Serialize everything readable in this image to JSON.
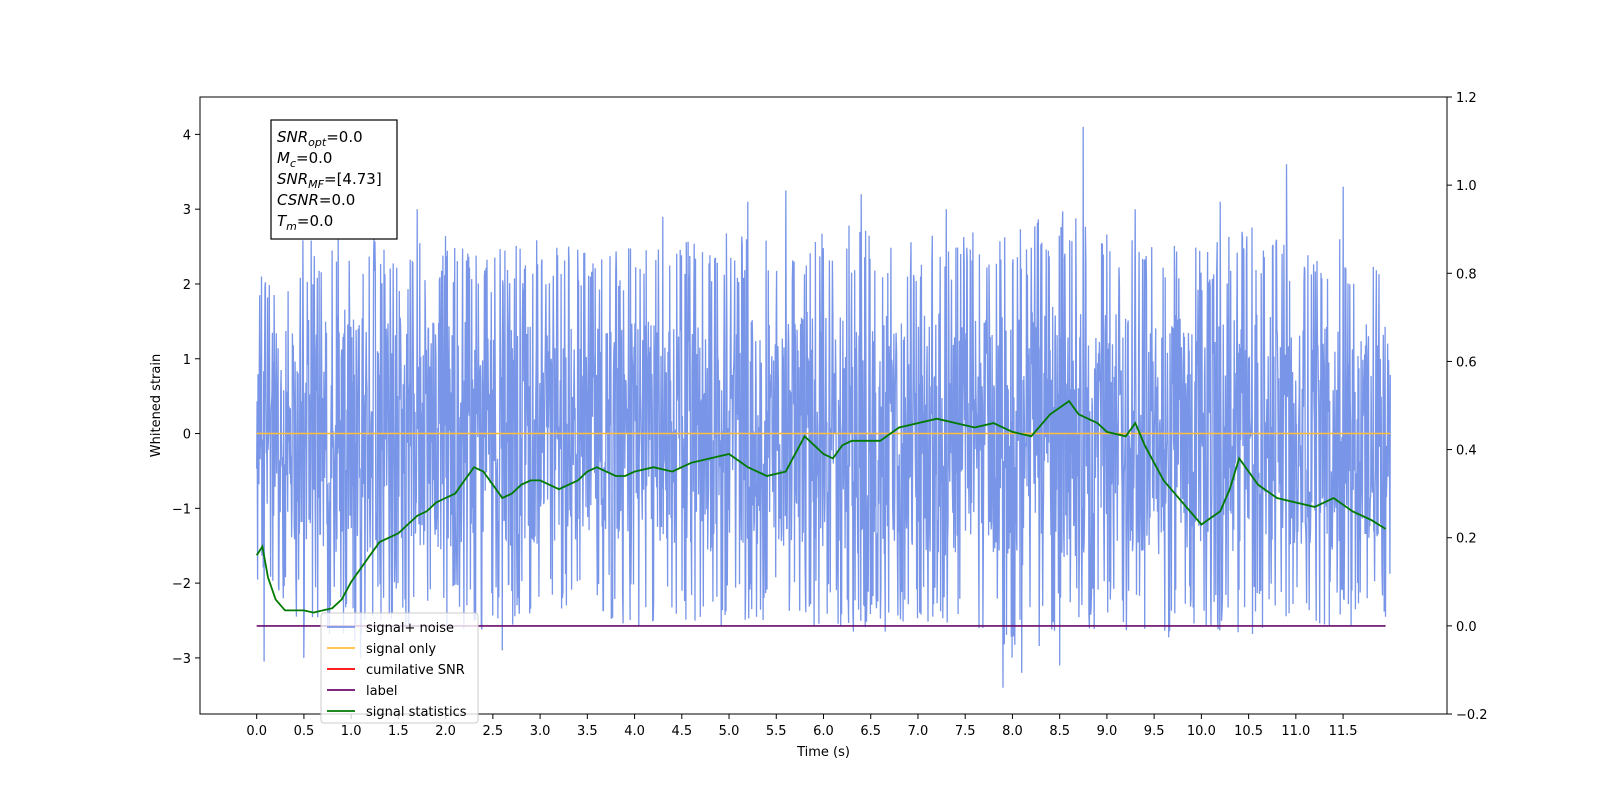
{
  "chart_data": {
    "type": "line",
    "title": "",
    "xlabel": "Time (s)",
    "ylabel": "Whitened strain",
    "xlim": [
      -0.6,
      12.6
    ],
    "ylim": [
      -3.75,
      4.5
    ],
    "y2lim": [
      -0.2,
      1.2
    ],
    "grid": false,
    "legend_placement": "lower-left",
    "x_ticks": [
      "0.0",
      "0.5",
      "1.0",
      "1.5",
      "2.0",
      "2.5",
      "3.0",
      "3.5",
      "4.0",
      "4.5",
      "5.0",
      "5.5",
      "6.0",
      "6.5",
      "7.0",
      "7.5",
      "8.0",
      "8.5",
      "9.0",
      "9.5",
      "10.0",
      "10.5",
      "11.0",
      "11.5"
    ],
    "y_ticks": [
      "−3",
      "−2",
      "−1",
      "0",
      "1",
      "2",
      "3",
      "4"
    ],
    "y2_ticks": [
      "−0.2",
      "0.0",
      "0.2",
      "0.4",
      "0.6",
      "0.8",
      "1.0",
      "1.2"
    ],
    "annotation": [
      {
        "base": "SNR",
        "sub": "opt",
        "value": "=0.0"
      },
      {
        "base": "M",
        "sub": "c",
        "value": "=0.0"
      },
      {
        "base": "SNR",
        "sub": "MF",
        "value": "=[4.73]"
      },
      {
        "base": "CSNR",
        "sub": "",
        "value": "=0.0"
      },
      {
        "base": "T",
        "sub": "m",
        "value": "=0.0"
      }
    ],
    "noise_envelope": {
      "x": [
        0.0,
        0.5,
        1.0,
        1.5,
        2.0,
        2.5,
        3.0,
        3.5,
        4.0,
        4.5,
        5.0,
        5.5,
        6.0,
        6.5,
        7.0,
        7.5,
        8.0,
        8.5,
        9.0,
        9.5,
        10.0,
        10.5,
        11.0,
        11.5,
        12.0
      ],
      "upper": [
        2.1,
        2.6,
        2.8,
        2.5,
        2.7,
        2.5,
        2.6,
        2.5,
        2.5,
        2.6,
        2.7,
        2.6,
        2.8,
        2.8,
        2.6,
        2.8,
        2.7,
        3.0,
        2.7,
        2.6,
        2.5,
        2.8,
        2.6,
        2.7,
        2.3
      ],
      "lower": [
        -2.0,
        -2.6,
        -2.8,
        -2.6,
        -2.7,
        -2.6,
        -2.5,
        -2.4,
        -2.6,
        -2.5,
        -2.6,
        -2.5,
        -2.6,
        -2.7,
        -2.6,
        -2.8,
        -3.0,
        -2.8,
        -2.6,
        -2.8,
        -2.6,
        -2.7,
        -2.6,
        -2.6,
        -2.4
      ],
      "peaks": [
        [
          0.05,
          2.1
        ],
        [
          0.08,
          -3.05
        ],
        [
          0.5,
          -3.0
        ],
        [
          1.1,
          -3.0
        ],
        [
          1.7,
          3.0
        ],
        [
          2.6,
          -2.9
        ],
        [
          3.3,
          2.5
        ],
        [
          4.3,
          2.9
        ],
        [
          5.2,
          3.1
        ],
        [
          5.6,
          3.25
        ],
        [
          6.4,
          3.2
        ],
        [
          7.3,
          3.0
        ],
        [
          7.9,
          -3.4
        ],
        [
          8.1,
          -3.2
        ],
        [
          8.75,
          4.1
        ],
        [
          8.5,
          -3.1
        ],
        [
          9.3,
          3.0
        ],
        [
          10.2,
          3.1
        ],
        [
          10.9,
          3.6
        ],
        [
          11.5,
          3.3
        ],
        [
          11.95,
          -2.45
        ]
      ]
    },
    "series": [
      {
        "name": "signal+ noise",
        "color": "#7895e8",
        "type": "noise"
      },
      {
        "name": "signal only",
        "color": "#ffbe3c",
        "x": [
          0.0,
          12.0
        ],
        "y": [
          0.0,
          0.0
        ]
      },
      {
        "name": "cumilative SNR",
        "color": "#ff0000",
        "x": [],
        "y": []
      },
      {
        "name": "label",
        "color": "#6a0a6a",
        "axis": "right",
        "x": [
          0.0,
          11.95
        ],
        "y": [
          0.0,
          0.0
        ]
      },
      {
        "name": "signal statistics",
        "color": "#007a00",
        "axis": "right",
        "x": [
          0.0,
          0.06,
          0.12,
          0.2,
          0.3,
          0.4,
          0.5,
          0.6,
          0.7,
          0.8,
          0.9,
          1.0,
          1.1,
          1.2,
          1.3,
          1.4,
          1.5,
          1.6,
          1.7,
          1.8,
          1.9,
          2.0,
          2.1,
          2.2,
          2.3,
          2.4,
          2.5,
          2.6,
          2.7,
          2.8,
          2.9,
          3.0,
          3.1,
          3.2,
          3.3,
          3.4,
          3.5,
          3.6,
          3.7,
          3.8,
          3.9,
          4.0,
          4.2,
          4.4,
          4.6,
          4.8,
          5.0,
          5.2,
          5.4,
          5.6,
          5.8,
          5.9,
          6.0,
          6.1,
          6.2,
          6.3,
          6.4,
          6.6,
          6.8,
          7.0,
          7.2,
          7.4,
          7.6,
          7.8,
          8.0,
          8.2,
          8.4,
          8.6,
          8.7,
          8.8,
          8.9,
          9.0,
          9.2,
          9.3,
          9.4,
          9.5,
          9.6,
          9.8,
          10.0,
          10.2,
          10.3,
          10.4,
          10.6,
          10.8,
          11.0,
          11.2,
          11.4,
          11.6,
          11.8,
          11.95
        ],
        "y": [
          0.16,
          0.18,
          0.11,
          0.06,
          0.035,
          0.035,
          0.035,
          0.03,
          0.035,
          0.04,
          0.06,
          0.1,
          0.13,
          0.16,
          0.19,
          0.2,
          0.21,
          0.23,
          0.25,
          0.26,
          0.28,
          0.29,
          0.3,
          0.33,
          0.36,
          0.35,
          0.32,
          0.29,
          0.3,
          0.32,
          0.33,
          0.33,
          0.32,
          0.31,
          0.32,
          0.33,
          0.35,
          0.36,
          0.35,
          0.34,
          0.34,
          0.35,
          0.36,
          0.35,
          0.37,
          0.38,
          0.39,
          0.36,
          0.34,
          0.35,
          0.43,
          0.41,
          0.39,
          0.38,
          0.41,
          0.42,
          0.42,
          0.42,
          0.45,
          0.46,
          0.47,
          0.46,
          0.45,
          0.46,
          0.44,
          0.43,
          0.48,
          0.51,
          0.48,
          0.47,
          0.46,
          0.44,
          0.43,
          0.46,
          0.41,
          0.37,
          0.33,
          0.28,
          0.23,
          0.26,
          0.31,
          0.38,
          0.32,
          0.29,
          0.28,
          0.27,
          0.29,
          0.26,
          0.24,
          0.22
        ]
      }
    ]
  }
}
